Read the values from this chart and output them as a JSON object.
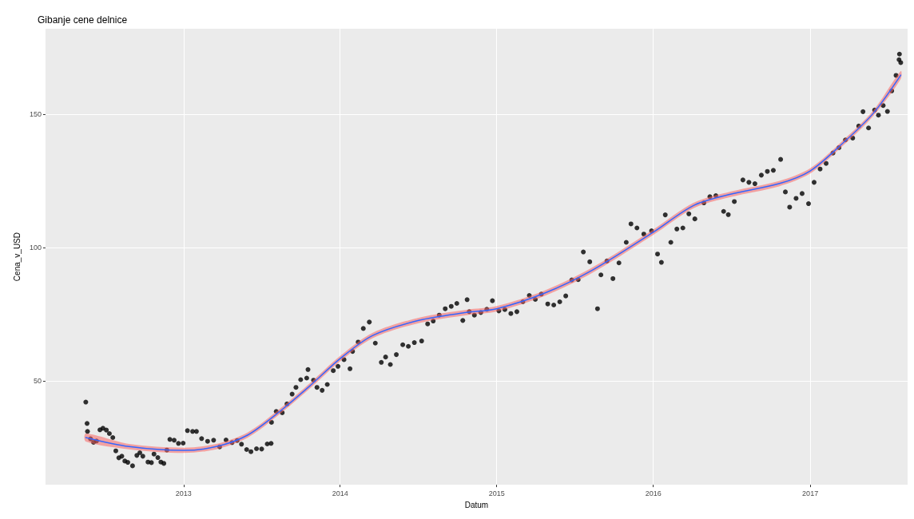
{
  "chart_data": {
    "type": "scatter",
    "title": "Gibanje cene delnice",
    "xlabel": "Datum",
    "ylabel": "Cena_v_USD",
    "xlim": [
      "2012-02-14",
      "2017-08-16"
    ],
    "xticks": [
      "2013",
      "2014",
      "2015",
      "2016",
      "2017"
    ],
    "ylim": [
      11,
      182
    ],
    "yticks": [
      50,
      100,
      150
    ],
    "grid": true,
    "marker": "circle",
    "series": [
      {
        "color": "#000000",
        "x": [
          "2012-05-18",
          "2012-05-21",
          "2012-05-22",
          "2012-05-29",
          "2012-06-05",
          "2012-06-12",
          "2012-06-20",
          "2012-06-27",
          "2012-07-05",
          "2012-07-12",
          "2012-07-20",
          "2012-07-27",
          "2012-08-03",
          "2012-08-10",
          "2012-08-17",
          "2012-08-24",
          "2012-09-04",
          "2012-09-14",
          "2012-09-21",
          "2012-09-28",
          "2012-10-10",
          "2012-10-18",
          "2012-10-24",
          "2012-11-02",
          "2012-11-09",
          "2012-11-16",
          "2012-11-23",
          "2012-11-30",
          "2012-12-10",
          "2012-12-20",
          "2012-12-31",
          "2013-01-10",
          "2013-01-22",
          "2013-01-31",
          "2013-02-12",
          "2013-02-26",
          "2013-03-12",
          "2013-03-26",
          "2013-04-10",
          "2013-04-24",
          "2013-05-06",
          "2013-05-16",
          "2013-05-28",
          "2013-06-07",
          "2013-06-20",
          "2013-07-02",
          "2013-07-15",
          "2013-07-24",
          "2013-07-25",
          "2013-08-05",
          "2013-08-19",
          "2013-08-30",
          "2013-09-11",
          "2013-09-20",
          "2013-10-01",
          "2013-10-15",
          "2013-10-18",
          "2013-10-31",
          "2013-11-08",
          "2013-11-20",
          "2013-12-02",
          "2013-12-16",
          "2013-12-27",
          "2014-01-10",
          "2014-01-24",
          "2014-01-30",
          "2014-02-12",
          "2014-02-24",
          "2014-03-10",
          "2014-03-24",
          "2014-04-07",
          "2014-04-17",
          "2014-04-28",
          "2014-05-12",
          "2014-05-27",
          "2014-06-09",
          "2014-06-23",
          "2014-07-10",
          "2014-07-24",
          "2014-08-06",
          "2014-08-20",
          "2014-09-03",
          "2014-09-17",
          "2014-09-30",
          "2014-10-14",
          "2014-10-24",
          "2014-10-29",
          "2014-11-10",
          "2014-11-25",
          "2014-12-09",
          "2014-12-22",
          "2015-01-06",
          "2015-01-20",
          "2015-02-03",
          "2015-02-17",
          "2015-03-03",
          "2015-03-18",
          "2015-04-01",
          "2015-04-15",
          "2015-04-30",
          "2015-05-14",
          "2015-05-28",
          "2015-06-11",
          "2015-06-25",
          "2015-07-10",
          "2015-07-22",
          "2015-08-06",
          "2015-08-24",
          "2015-09-01",
          "2015-09-15",
          "2015-09-29",
          "2015-10-13",
          "2015-10-30",
          "2015-11-10",
          "2015-11-24",
          "2015-12-10",
          "2015-12-28",
          "2016-01-11",
          "2016-01-20",
          "2016-01-29",
          "2016-02-11",
          "2016-02-25",
          "2016-03-10",
          "2016-03-24",
          "2016-04-07",
          "2016-04-28",
          "2016-05-12",
          "2016-05-26",
          "2016-06-13",
          "2016-06-24",
          "2016-07-08",
          "2016-07-28",
          "2016-08-11",
          "2016-08-25",
          "2016-09-09",
          "2016-09-23",
          "2016-10-07",
          "2016-10-24",
          "2016-11-04",
          "2016-11-14",
          "2016-11-29",
          "2016-12-13",
          "2016-12-28",
          "2017-01-10",
          "2017-01-24",
          "2017-02-07",
          "2017-02-23",
          "2017-03-09",
          "2017-03-24",
          "2017-04-10",
          "2017-04-24",
          "2017-05-04",
          "2017-05-17",
          "2017-05-31",
          "2017-06-09",
          "2017-06-20",
          "2017-06-30",
          "2017-07-10",
          "2017-07-20",
          "2017-07-27",
          "2017-07-28",
          "2017-07-31"
        ],
        "values": [
          42,
          34,
          31,
          28.2,
          26.9,
          27.4,
          31.6,
          32.2,
          31.5,
          30.2,
          28.7,
          23.7,
          21.1,
          21.7,
          19.9,
          19.4,
          18.1,
          22,
          23,
          21.7,
          19.5,
          19.3,
          22.5,
          21.2,
          19.5,
          19,
          24,
          28,
          27.7,
          26.5,
          26.6,
          31.3,
          31,
          31,
          28.3,
          27.3,
          27.7,
          25.2,
          27.8,
          26.8,
          27.6,
          26.2,
          24.2,
          23.4,
          24.5,
          24.4,
          26.3,
          26.5,
          34.4,
          38.5,
          38,
          41.3,
          45,
          47.5,
          50.4,
          51,
          54.2,
          50.2,
          47.5,
          46.4,
          48.6,
          53.8,
          55.4,
          57.9,
          54.5,
          61,
          64.5,
          69.6,
          72,
          64.1,
          56.9,
          58.9,
          56.1,
          59.8,
          63.5,
          62.9,
          64.3,
          64.9,
          71.3,
          72.4,
          74.6,
          77,
          77.9,
          79,
          72.6,
          80.4,
          75.9,
          74.6,
          75.6,
          76.8,
          80,
          76.2,
          76.7,
          75.2,
          75.9,
          79.6,
          82,
          80.5,
          82.5,
          78.8,
          78.4,
          79.6,
          81.8,
          87.8,
          87.9,
          98.3,
          94.6,
          77,
          89.7,
          94.9,
          88.3,
          94.2,
          101.9,
          108.8,
          107.3,
          105,
          106.2,
          97.5,
          94.4,
          112.2,
          101.9,
          106.9,
          107.3,
          112.6,
          110.7,
          116.7,
          119,
          119.4,
          113.5,
          112.3,
          117.2,
          125.3,
          124.4,
          123.9,
          127.1,
          128.5,
          128.9,
          133,
          120.8,
          115.1,
          118.4,
          120.2,
          116.4,
          124.4,
          129.4,
          131.5,
          135.4,
          137.4,
          140.3,
          141,
          145.5,
          150.9,
          144.8,
          151.5,
          149.6,
          153.2,
          151,
          158.7,
          164.5,
          170.4,
          172.5,
          169.3
        ]
      },
      {
        "type": "line",
        "marker": "none",
        "color": "#3366ff",
        "x": [
          "2012-05-18",
          "2012-08-27",
          "2013-01-01",
          "2013-03-18",
          "2013-05-30",
          "2013-08-11",
          "2013-10-24",
          "2014-01-01",
          "2014-03-18",
          "2014-07-05",
          "2014-10-23",
          "2015-01-01",
          "2015-04-22",
          "2015-08-11",
          "2016-01-01",
          "2016-04-05",
          "2016-07-01",
          "2016-10-20",
          "2017-01-01",
          "2017-03-16",
          "2017-05-28",
          "2017-07-31"
        ],
        "values": [
          28.7,
          25.3,
          23.9,
          25.3,
          29.6,
          38.2,
          48.3,
          58.3,
          67,
          72.7,
          75.6,
          77,
          82.8,
          91.4,
          105.7,
          115.8,
          120,
          123.9,
          128.7,
          138.8,
          150.3,
          164.6
        ],
        "lower": [
          27.2,
          24.3,
          22.9,
          24.3,
          28.6,
          37.2,
          47.3,
          57.3,
          66,
          71.7,
          74.6,
          76,
          81.8,
          90.4,
          104.7,
          114.8,
          119,
          122.9,
          127.7,
          137.8,
          149.3,
          163.1
        ],
        "upper": [
          30.2,
          26.3,
          24.9,
          26.3,
          30.6,
          39.2,
          49.3,
          59.3,
          68,
          73.7,
          76.6,
          78,
          83.8,
          92.4,
          106.7,
          116.8,
          121,
          124.9,
          129.7,
          139.8,
          151.3,
          166.1
        ]
      }
    ]
  }
}
